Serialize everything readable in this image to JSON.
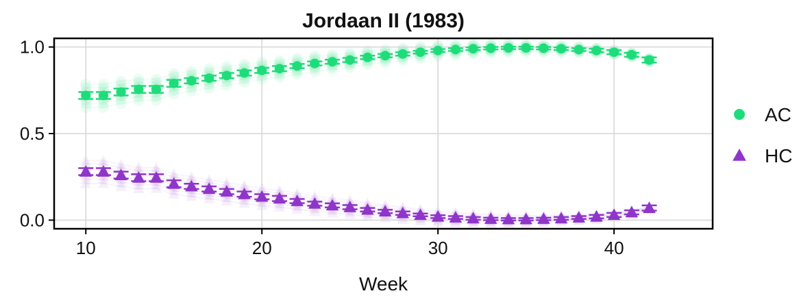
{
  "chart_data": {
    "type": "scatter",
    "title": "Jordaan II (1983)",
    "xlabel": "Week",
    "ylabel": "",
    "xlim": [
      8.2,
      45.6
    ],
    "ylim": [
      -0.05,
      1.05
    ],
    "xticks": [
      10,
      20,
      30,
      40
    ],
    "yticks": [
      0.0,
      0.5,
      1.0
    ],
    "xtick_labels": [
      "10",
      "20",
      "30",
      "40"
    ],
    "ytick_labels": [
      "0.0",
      "0.5",
      "1.0"
    ],
    "grid": true,
    "legend": "right",
    "x": [
      10,
      11,
      12,
      13,
      14,
      15,
      16,
      17,
      18,
      19,
      20,
      21,
      22,
      23,
      24,
      25,
      26,
      27,
      28,
      29,
      30,
      31,
      32,
      33,
      34,
      35,
      36,
      37,
      38,
      39,
      40,
      41,
      42
    ],
    "series": [
      {
        "name": "AC",
        "marker": "circle",
        "color": "#1fdc7a",
        "values": [
          0.72,
          0.72,
          0.74,
          0.755,
          0.755,
          0.79,
          0.805,
          0.82,
          0.835,
          0.85,
          0.865,
          0.875,
          0.89,
          0.905,
          0.915,
          0.925,
          0.94,
          0.95,
          0.96,
          0.97,
          0.98,
          0.985,
          0.99,
          0.993,
          0.995,
          0.995,
          0.993,
          0.99,
          0.985,
          0.98,
          0.97,
          0.955,
          0.925
        ],
        "errors": [
          0.02,
          0.02,
          0.02,
          0.02,
          0.02,
          0.02,
          0.015,
          0.015,
          0.015,
          0.015,
          0.015,
          0.015,
          0.012,
          0.012,
          0.012,
          0.012,
          0.01,
          0.01,
          0.01,
          0.008,
          0.008,
          0.008,
          0.008,
          0.007,
          0.007,
          0.007,
          0.007,
          0.008,
          0.008,
          0.01,
          0.012,
          0.012,
          0.015
        ]
      },
      {
        "name": "HC",
        "marker": "triangle",
        "color": "#8f35c9",
        "values": [
          0.28,
          0.28,
          0.26,
          0.245,
          0.245,
          0.21,
          0.195,
          0.18,
          0.165,
          0.15,
          0.135,
          0.125,
          0.11,
          0.095,
          0.085,
          0.075,
          0.06,
          0.05,
          0.04,
          0.03,
          0.02,
          0.015,
          0.01,
          0.007,
          0.005,
          0.005,
          0.007,
          0.01,
          0.015,
          0.02,
          0.03,
          0.045,
          0.07
        ],
        "errors": [
          0.02,
          0.02,
          0.02,
          0.02,
          0.02,
          0.02,
          0.015,
          0.015,
          0.015,
          0.015,
          0.015,
          0.015,
          0.012,
          0.012,
          0.012,
          0.012,
          0.01,
          0.01,
          0.01,
          0.008,
          0.008,
          0.008,
          0.008,
          0.007,
          0.007,
          0.007,
          0.007,
          0.008,
          0.008,
          0.01,
          0.012,
          0.012,
          0.015
        ]
      }
    ]
  }
}
